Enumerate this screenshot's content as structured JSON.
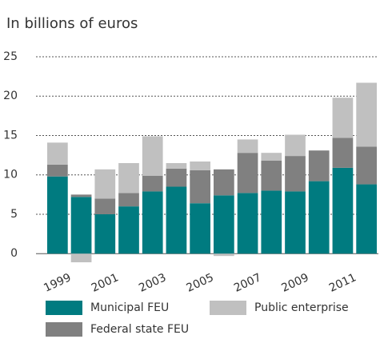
{
  "chart_data": {
    "type": "stacked_bar",
    "subtitle": "In billions of euros",
    "categories": [
      "1999",
      null,
      "2001",
      null,
      "2003",
      null,
      "2005",
      null,
      "2007",
      null,
      "2009",
      null,
      "2011",
      null
    ],
    "series": [
      {
        "name": "Municipal FEU",
        "color": "#007b80",
        "values": [
          9.8,
          7.2,
          5.0,
          6.0,
          7.9,
          8.5,
          6.4,
          7.4,
          7.7,
          8.0,
          7.9,
          9.2,
          10.9,
          8.8
        ]
      },
      {
        "name": "Federal state FEU",
        "color": "#808080",
        "values": [
          1.5,
          0.3,
          2.0,
          1.7,
          2.0,
          2.3,
          4.2,
          3.3,
          5.1,
          3.8,
          4.5,
          3.9,
          3.8,
          4.8
        ]
      },
      {
        "name": "Public enterprise",
        "color": "#c0c0c0",
        "values": [
          2.8,
          -1.1,
          3.7,
          3.8,
          5.0,
          0.7,
          1.1,
          -0.3,
          1.7,
          1.0,
          2.7,
          0,
          5.1,
          8.1
        ]
      }
    ],
    "ylim": [
      -1.5,
      25
    ],
    "yticks": [
      0,
      5,
      10,
      15,
      20,
      25
    ],
    "grid": true
  }
}
